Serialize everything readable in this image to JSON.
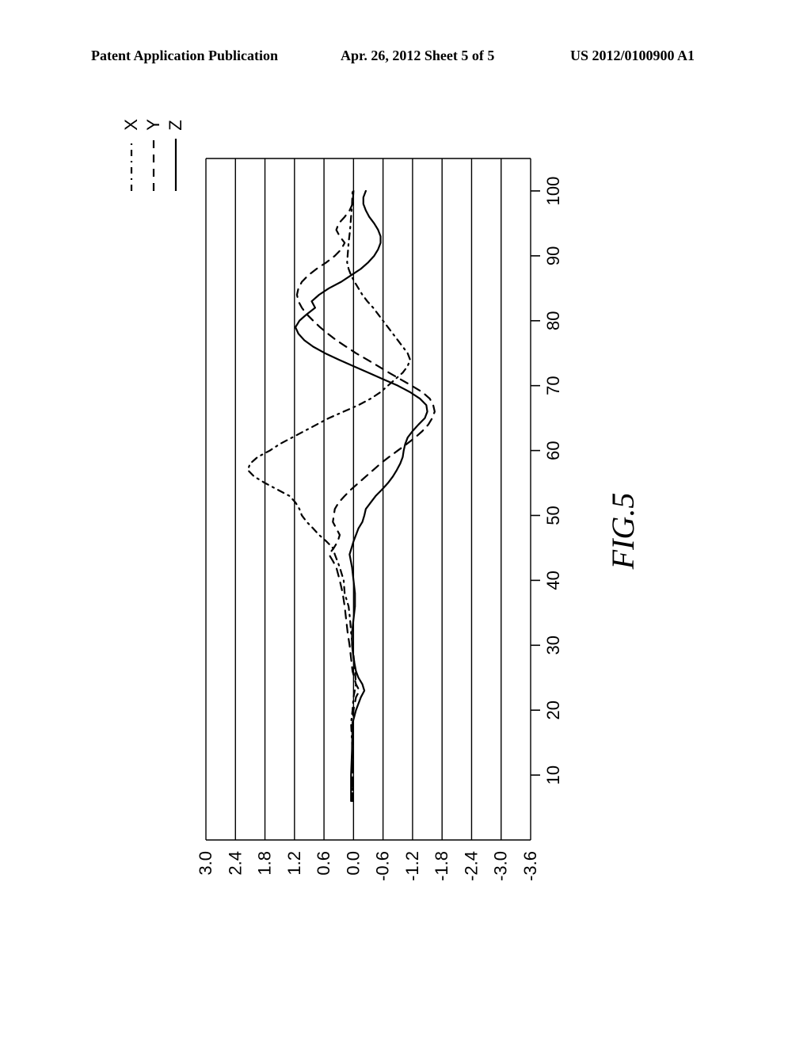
{
  "header": {
    "left": "Patent Application Publication",
    "mid": "Apr. 26, 2012  Sheet 5 of 5",
    "right": "US 2012/0100900 A1"
  },
  "legend": {
    "items": [
      {
        "name": "X",
        "dash": "8 6 2 6",
        "key": "x"
      },
      {
        "name": "Y",
        "dash": "10 8",
        "key": "y"
      },
      {
        "name": "Z",
        "dash": "",
        "key": "z"
      }
    ]
  },
  "caption": "FIG.5",
  "chart": {
    "type": "line",
    "background_color": "#ffffff",
    "grid_color": "#000000",
    "axis_color": "#000000",
    "stroke_color": "#000000",
    "stroke_width": 2.2,
    "font_family": "Arial, sans-serif",
    "tick_fontsize": 22,
    "xlim": [
      0,
      105
    ],
    "ylim": [
      -3.6,
      3.0
    ],
    "xtick_start": 10,
    "xtick_step": 10,
    "xtick_end": 100,
    "yticks": [
      3.0,
      2.4,
      1.8,
      1.2,
      0.6,
      0.0,
      -0.6,
      -1.2,
      -1.8,
      -2.4,
      -3.0,
      -3.6
    ],
    "series": {
      "x": {
        "dash": "8 6 2 6",
        "data": [
          [
            6,
            0.02
          ],
          [
            10,
            0.02
          ],
          [
            15,
            0.03
          ],
          [
            18,
            0.05
          ],
          [
            20,
            0.02
          ],
          [
            22,
            0.0
          ],
          [
            24,
            -0.05
          ],
          [
            27,
            -0.02
          ],
          [
            30,
            0.02
          ],
          [
            32,
            0.05
          ],
          [
            34,
            0.07
          ],
          [
            36,
            0.1
          ],
          [
            38,
            0.18
          ],
          [
            40,
            0.2
          ],
          [
            42,
            0.28
          ],
          [
            44,
            0.38
          ],
          [
            45,
            0.42
          ],
          [
            46,
            0.55
          ],
          [
            47,
            0.7
          ],
          [
            48,
            0.82
          ],
          [
            49,
            0.95
          ],
          [
            50,
            1.05
          ],
          [
            51,
            1.1
          ],
          [
            52,
            1.18
          ],
          [
            53,
            1.3
          ],
          [
            54,
            1.55
          ],
          [
            55,
            1.8
          ],
          [
            56,
            2.02
          ],
          [
            57,
            2.15
          ],
          [
            58,
            2.1
          ],
          [
            59,
            1.95
          ],
          [
            60,
            1.7
          ],
          [
            61,
            1.5
          ],
          [
            62,
            1.25
          ],
          [
            63,
            1.0
          ],
          [
            64,
            0.75
          ],
          [
            65,
            0.5
          ],
          [
            66,
            0.2
          ],
          [
            67,
            -0.1
          ],
          [
            68,
            -0.35
          ],
          [
            69,
            -0.55
          ],
          [
            70,
            -0.7
          ],
          [
            71,
            -0.85
          ],
          [
            72,
            -1.0
          ],
          [
            73,
            -1.1
          ],
          [
            74,
            -1.15
          ],
          [
            75,
            -1.1
          ],
          [
            76,
            -1.0
          ],
          [
            77,
            -0.9
          ],
          [
            78,
            -0.8
          ],
          [
            79,
            -0.7
          ],
          [
            80,
            -0.6
          ],
          [
            81,
            -0.5
          ],
          [
            82,
            -0.4
          ],
          [
            83,
            -0.28
          ],
          [
            84,
            -0.18
          ],
          [
            85,
            -0.1
          ],
          [
            86,
            -0.02
          ],
          [
            87,
            0.05
          ],
          [
            88,
            0.1
          ],
          [
            89,
            0.13
          ],
          [
            90,
            0.12
          ],
          [
            92,
            0.1
          ],
          [
            94,
            0.07
          ],
          [
            96,
            0.05
          ],
          [
            98,
            0.03
          ],
          [
            100,
            0.02
          ]
        ]
      },
      "y": {
        "dash": "10 8",
        "data": [
          [
            6,
            0.02
          ],
          [
            10,
            0.02
          ],
          [
            14,
            0.02
          ],
          [
            18,
            0.02
          ],
          [
            20,
            0.0
          ],
          [
            22,
            -0.05
          ],
          [
            23,
            -0.12
          ],
          [
            24,
            -0.05
          ],
          [
            26,
            0.02
          ],
          [
            28,
            0.05
          ],
          [
            30,
            0.08
          ],
          [
            32,
            0.12
          ],
          [
            34,
            0.15
          ],
          [
            36,
            0.18
          ],
          [
            38,
            0.22
          ],
          [
            40,
            0.28
          ],
          [
            42,
            0.35
          ],
          [
            43,
            0.42
          ],
          [
            44,
            0.5
          ],
          [
            45,
            0.4
          ],
          [
            46,
            0.32
          ],
          [
            47,
            0.28
          ],
          [
            48,
            0.35
          ],
          [
            49,
            0.42
          ],
          [
            50,
            0.4
          ],
          [
            51,
            0.38
          ],
          [
            52,
            0.3
          ],
          [
            53,
            0.18
          ],
          [
            54,
            0.05
          ],
          [
            55,
            -0.1
          ],
          [
            56,
            -0.25
          ],
          [
            57,
            -0.4
          ],
          [
            58,
            -0.55
          ],
          [
            59,
            -0.72
          ],
          [
            60,
            -0.9
          ],
          [
            61,
            -1.08
          ],
          [
            62,
            -1.25
          ],
          [
            63,
            -1.4
          ],
          [
            64,
            -1.52
          ],
          [
            65,
            -1.6
          ],
          [
            66,
            -1.65
          ],
          [
            67,
            -1.62
          ],
          [
            68,
            -1.55
          ],
          [
            69,
            -1.4
          ],
          [
            70,
            -1.18
          ],
          [
            71,
            -0.95
          ],
          [
            72,
            -0.72
          ],
          [
            73,
            -0.5
          ],
          [
            74,
            -0.28
          ],
          [
            75,
            -0.05
          ],
          [
            76,
            0.15
          ],
          [
            77,
            0.35
          ],
          [
            78,
            0.52
          ],
          [
            79,
            0.68
          ],
          [
            80,
            0.82
          ],
          [
            81,
            0.95
          ],
          [
            82,
            1.05
          ],
          [
            83,
            1.12
          ],
          [
            84,
            1.15
          ],
          [
            85,
            1.12
          ],
          [
            86,
            1.05
          ],
          [
            87,
            0.92
          ],
          [
            88,
            0.75
          ],
          [
            89,
            0.55
          ],
          [
            90,
            0.38
          ],
          [
            91,
            0.25
          ],
          [
            92,
            0.18
          ],
          [
            93,
            0.28
          ],
          [
            94,
            0.35
          ],
          [
            95,
            0.3
          ],
          [
            96,
            0.18
          ],
          [
            97,
            0.08
          ],
          [
            98,
            0.02
          ],
          [
            100,
            0.0
          ]
        ]
      },
      "z": {
        "dash": "",
        "data": [
          [
            6,
            0.05
          ],
          [
            10,
            0.05
          ],
          [
            14,
            0.03
          ],
          [
            18,
            0.02
          ],
          [
            20,
            -0.05
          ],
          [
            22,
            -0.15
          ],
          [
            23,
            -0.22
          ],
          [
            24,
            -0.18
          ],
          [
            25,
            -0.1
          ],
          [
            26,
            -0.05
          ],
          [
            28,
            0.0
          ],
          [
            30,
            0.03
          ],
          [
            32,
            0.03
          ],
          [
            34,
            0.0
          ],
          [
            36,
            -0.03
          ],
          [
            38,
            -0.03
          ],
          [
            40,
            0.0
          ],
          [
            42,
            0.03
          ],
          [
            44,
            0.08
          ],
          [
            46,
            0.0
          ],
          [
            48,
            -0.1
          ],
          [
            49,
            -0.18
          ],
          [
            50,
            -0.22
          ],
          [
            51,
            -0.25
          ],
          [
            52,
            -0.35
          ],
          [
            53,
            -0.45
          ],
          [
            54,
            -0.58
          ],
          [
            55,
            -0.7
          ],
          [
            56,
            -0.8
          ],
          [
            57,
            -0.88
          ],
          [
            58,
            -0.95
          ],
          [
            59,
            -1.0
          ],
          [
            60,
            -1.02
          ],
          [
            61,
            -1.05
          ],
          [
            62,
            -1.1
          ],
          [
            63,
            -1.2
          ],
          [
            64,
            -1.32
          ],
          [
            65,
            -1.45
          ],
          [
            66,
            -1.5
          ],
          [
            67,
            -1.48
          ],
          [
            68,
            -1.35
          ],
          [
            69,
            -1.15
          ],
          [
            70,
            -0.9
          ],
          [
            71,
            -0.6
          ],
          [
            72,
            -0.3
          ],
          [
            73,
            0.0
          ],
          [
            74,
            0.3
          ],
          [
            75,
            0.58
          ],
          [
            76,
            0.82
          ],
          [
            77,
            1.0
          ],
          [
            78,
            1.12
          ],
          [
            79,
            1.18
          ],
          [
            80,
            1.1
          ],
          [
            81,
            0.95
          ],
          [
            82,
            0.78
          ],
          [
            83,
            0.85
          ],
          [
            84,
            0.7
          ],
          [
            85,
            0.5
          ],
          [
            86,
            0.25
          ],
          [
            87,
            0.05
          ],
          [
            88,
            -0.15
          ],
          [
            89,
            -0.3
          ],
          [
            90,
            -0.42
          ],
          [
            91,
            -0.5
          ],
          [
            92,
            -0.55
          ],
          [
            93,
            -0.55
          ],
          [
            94,
            -0.5
          ],
          [
            95,
            -0.42
          ],
          [
            96,
            -0.32
          ],
          [
            97,
            -0.25
          ],
          [
            98,
            -0.2
          ],
          [
            99,
            -0.2
          ],
          [
            100,
            -0.25
          ]
        ]
      }
    }
  }
}
